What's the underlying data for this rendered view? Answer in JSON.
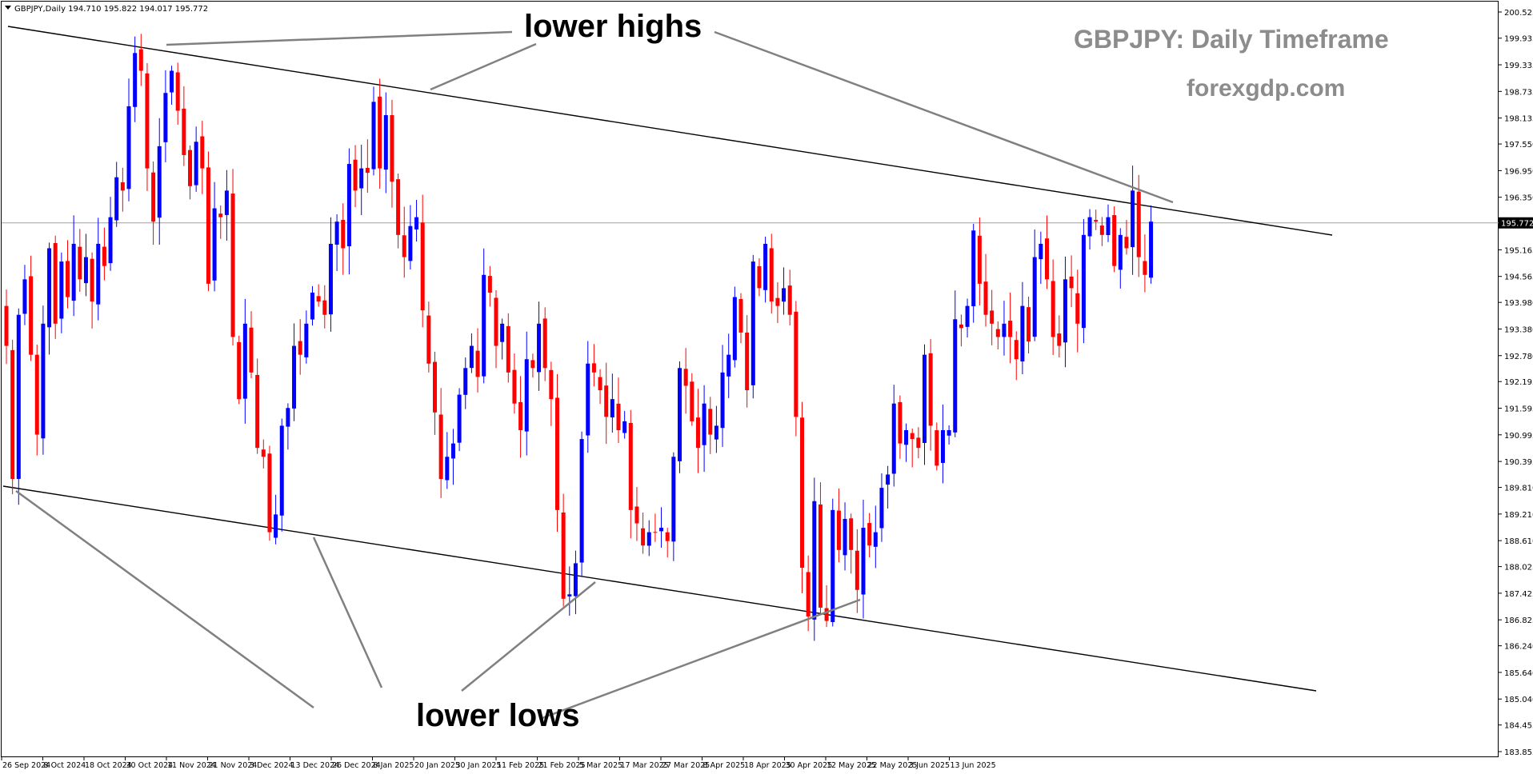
{
  "header": {
    "symbol_line": "GBPJPY,Daily  194.710 195.822 194.017 195.772"
  },
  "annotations": {
    "lower_highs": "lower highs",
    "lower_lows": "lower lows",
    "title": "GBPJPY: Daily Timeframe",
    "site": "forexgdp.com"
  },
  "colors": {
    "bull": "#0000ff",
    "bear": "#ff0000",
    "trendline": "#000000",
    "pointer": "#808080",
    "price_line": "#a0a0a0",
    "watermark": "#8c8c8c"
  },
  "chart_data": {
    "type": "candlestick",
    "title": "GBPJPY: Daily Timeframe",
    "symbol": "GBPJPY",
    "timeframe": "Daily",
    "last_price": 195.772,
    "last_price_label": "195.772",
    "ylim": [
      184.0,
      200.6
    ],
    "y_ticks": [
      "200.525",
      "199.935",
      "199.335",
      "198.735",
      "198.135",
      "197.550",
      "196.950",
      "196.350",
      "195.765",
      "195.165",
      "194.565",
      "193.980",
      "193.380",
      "192.780",
      "192.195",
      "191.595",
      "190.995",
      "190.395",
      "189.810",
      "189.210",
      "188.610",
      "188.025",
      "187.425",
      "186.825",
      "186.240",
      "185.640",
      "185.040",
      "184.455",
      "183.855"
    ],
    "x_ticks": [
      "26 Sep 2024",
      "8 Oct 2024",
      "18 Oct 2024",
      "30 Oct 2024",
      "11 Nov 2024",
      "21 Nov 2024",
      "3 Dec 2024",
      "13 Dec 2024",
      "26 Dec 2024",
      "8 Jan 2025",
      "20 Jan 2025",
      "30 Jan 2025",
      "11 Feb 2025",
      "21 Feb 2025",
      "5 Mar 2025",
      "17 Mar 2025",
      "27 Mar 2025",
      "8 Apr 2025",
      "18 Apr 2025",
      "30 Apr 2025",
      "12 May 2025",
      "22 May 2025",
      "3 Jun 2025",
      "13 Jun 2025"
    ],
    "closes": [
      193.0,
      190.0,
      193.7,
      194.5,
      192.8,
      191.0,
      193.5,
      195.2,
      193.5,
      194.9,
      194.1,
      195.3,
      194.5,
      195.0,
      194.0,
      195.3,
      194.8,
      195.9,
      196.8,
      196.5,
      198.4,
      199.6,
      199.2,
      197.0,
      195.8,
      197.5,
      198.7,
      199.2,
      198.3,
      197.3,
      196.6,
      197.6,
      197.0,
      194.4,
      196.1,
      195.9,
      196.5,
      193.2,
      191.8,
      193.5,
      192.4,
      190.7,
      190.5,
      188.8,
      189.2,
      191.2,
      191.6,
      193.0,
      192.8,
      193.5,
      194.2,
      194.0,
      193.7,
      195.3,
      195.8,
      195.2,
      197.1,
      196.5,
      197.0,
      196.9,
      198.5,
      197.0,
      198.2,
      196.7,
      195.5,
      195.0,
      195.7,
      195.9,
      193.8,
      192.6,
      191.5,
      190.0,
      190.5,
      190.8,
      191.9,
      192.5,
      193.0,
      192.3,
      194.6,
      194.2,
      193.0,
      193.5,
      192.4,
      191.7,
      191.1,
      192.7,
      192.5,
      193.5,
      192.5,
      191.8,
      189.3,
      187.3,
      187.4,
      188.1,
      190.9,
      192.6,
      192.4,
      192.0,
      191.4,
      191.8,
      191.1,
      191.3,
      189.3,
      189.0,
      188.5,
      188.8,
      188.8,
      188.9,
      188.6,
      190.5,
      192.5,
      192.1,
      191.3,
      190.7,
      191.7,
      191.0,
      191.2,
      192.4,
      192.8,
      194.1,
      193.3,
      192.0,
      194.9,
      194.3,
      195.3,
      194.0,
      193.9,
      194.3,
      193.7,
      191.4,
      188.0,
      186.9,
      189.5,
      187.1,
      186.8,
      189.3,
      188.4,
      189.1,
      188.4,
      187.5,
      188.9,
      188.5,
      188.8,
      189.8,
      190.1,
      191.7,
      190.8,
      191.1,
      190.9,
      190.7,
      192.8,
      191.2,
      190.3,
      191.1,
      191.1,
      193.6,
      193.4,
      193.9,
      195.6,
      194.4,
      193.7,
      193.5,
      193.2,
      193.5,
      193.2,
      192.7,
      193.9,
      193.1,
      195.0,
      195.3,
      194.5,
      193.2,
      193.0,
      194.5,
      194.3,
      193.5,
      195.5,
      195.9,
      195.8,
      195.5,
      195.9,
      194.8,
      195.5,
      195.2,
      196.5,
      195.0,
      194.6,
      195.8
    ]
  }
}
